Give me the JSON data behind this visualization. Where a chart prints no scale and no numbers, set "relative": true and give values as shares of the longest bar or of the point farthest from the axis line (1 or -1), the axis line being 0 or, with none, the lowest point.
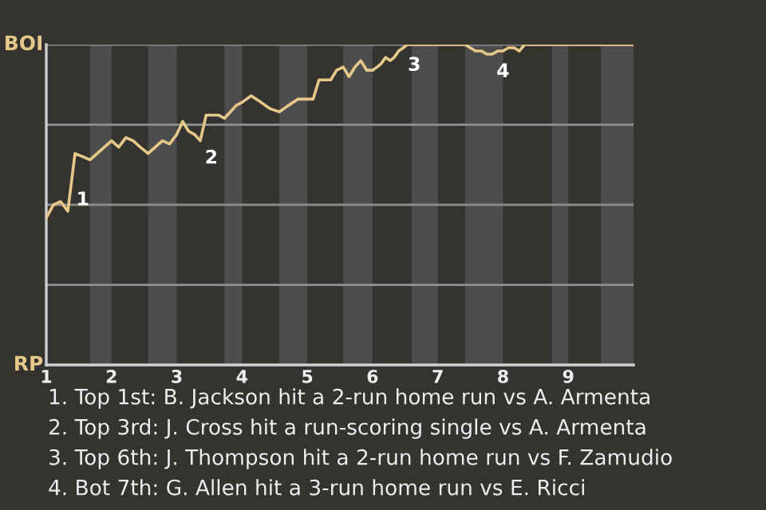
{
  "chart_data": {
    "type": "line",
    "relative": true,
    "grid": "y",
    "legend": false,
    "x": [
      1,
      1.11,
      1.22,
      1.33,
      1.44,
      1.56,
      1.67,
      1.78,
      1.89,
      2,
      2.11,
      2.22,
      2.33,
      2.44,
      2.56,
      2.67,
      2.78,
      2.89,
      3,
      3.09,
      3.18,
      3.27,
      3.36,
      3.45,
      3.55,
      3.64,
      3.73,
      3.82,
      3.91,
      4,
      4.14,
      4.29,
      4.43,
      4.57,
      4.71,
      4.86,
      5,
      5.09,
      5.18,
      5.27,
      5.36,
      5.45,
      5.55,
      5.64,
      5.73,
      5.82,
      5.91,
      6,
      6.07,
      6.13,
      6.2,
      6.27,
      6.33,
      6.4,
      6.47,
      6.53,
      6.6,
      6.67,
      6.73,
      6.8,
      6.87,
      6.93,
      7,
      7.08,
      7.17,
      7.25,
      7.33,
      7.42,
      7.5,
      7.58,
      7.67,
      7.75,
      7.83,
      7.92,
      8,
      8.08,
      8.17,
      8.25,
      8.33,
      8.42,
      8.5,
      8.58,
      8.67,
      8.75,
      8.83,
      8.92,
      9,
      9.17,
      9.33,
      9.5,
      9.67,
      9.83,
      10
    ],
    "xlim": [
      1,
      10
    ],
    "xticks": [
      1,
      2,
      3,
      4,
      5,
      6,
      7,
      8,
      9
    ],
    "series": [
      {
        "color": "#e6c98a",
        "values": [
          0.46,
          0.5,
          0.51,
          0.48,
          0.66,
          0.65,
          0.64,
          0.66,
          0.68,
          0.7,
          0.68,
          0.71,
          0.7,
          0.68,
          0.66,
          0.68,
          0.7,
          0.69,
          0.72,
          0.76,
          0.73,
          0.72,
          0.7,
          0.78,
          0.78,
          0.78,
          0.77,
          0.79,
          0.81,
          0.82,
          0.84,
          0.82,
          0.8,
          0.79,
          0.81,
          0.83,
          0.83,
          0.83,
          0.89,
          0.89,
          0.89,
          0.92,
          0.93,
          0.9,
          0.93,
          0.95,
          0.92,
          0.92,
          0.93,
          0.94,
          0.96,
          0.95,
          0.96,
          0.98,
          0.99,
          1,
          1,
          1,
          1,
          1,
          1,
          1,
          1,
          1,
          1,
          1,
          1,
          1,
          0.99,
          0.98,
          0.98,
          0.97,
          0.97,
          0.98,
          0.98,
          0.99,
          0.99,
          0.98,
          1,
          1,
          1,
          1,
          1,
          1,
          1,
          1,
          1,
          1,
          1,
          1,
          1,
          1,
          1
        ]
      }
    ],
    "bands": [
      {
        "axis": "x",
        "from": 1.67,
        "to": 2,
        "color": "#4d4d4d"
      },
      {
        "axis": "x",
        "from": 2.56,
        "to": 3,
        "color": "#4d4d4d"
      },
      {
        "axis": "x",
        "from": 3.73,
        "to": 4,
        "color": "#4d4d4d"
      },
      {
        "axis": "x",
        "from": 4.57,
        "to": 5,
        "color": "#4d4d4d"
      },
      {
        "axis": "x",
        "from": 5.55,
        "to": 6,
        "color": "#4d4d4d"
      },
      {
        "axis": "x",
        "from": 6.6,
        "to": 7,
        "color": "#4d4d4d"
      },
      {
        "axis": "x",
        "from": 7.42,
        "to": 8,
        "color": "#4d4d4d"
      },
      {
        "axis": "x",
        "from": 8.75,
        "to": 9,
        "color": "#4d4d4d"
      },
      {
        "axis": "x",
        "from": 9.5,
        "to": 10,
        "color": "#4d4d4d"
      }
    ],
    "annotations": [
      "BOI",
      "RP",
      {
        "text": "1",
        "x": 1.39,
        "y": 0.57
      },
      {
        "text": "2",
        "x": 3.36,
        "y": 0.7
      },
      {
        "text": "3",
        "x": 6.47,
        "y": 0.99
      },
      {
        "text": "4",
        "x": 7.83,
        "y": 0.97
      },
      "1. Top 1st: B. Jackson hit a 2-run home run vs A. Armenta",
      "2. Top 3rd: J. Cross hit a run-scoring single vs A. Armenta",
      "3. Top 6th: J. Thompson hit a 2-run home run vs F. Zamudio",
      "4. Bot 7th: G. Allen hit a 3-run home run vs E. Ricci"
    ]
  }
}
